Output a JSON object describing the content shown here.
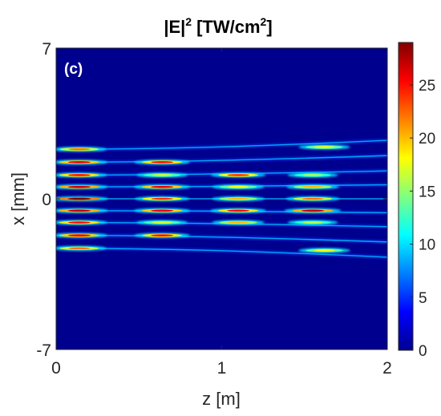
{
  "chart_data": {
    "type": "heatmap",
    "title": {
      "main": "|E|",
      "sup1": "2",
      "unit": "[TW/cm",
      "sup2": "2",
      "close": "]"
    },
    "panel_label": "(c)",
    "xlabel": "z [m]",
    "ylabel": "x [mm]",
    "xlim": [
      0,
      2
    ],
    "ylim": [
      -7,
      7
    ],
    "xticks": [
      "0",
      "1",
      "2"
    ],
    "yticks": [
      "-7",
      "0",
      "7"
    ],
    "colorbar": {
      "range": [
        0,
        29
      ],
      "ticks": [
        "0",
        "5",
        "10",
        "15",
        "20",
        "25"
      ],
      "colormap": "jet"
    },
    "background_color": "#00008f",
    "filaments": {
      "x_mm": [
        2.3,
        1.7,
        1.1,
        0.55,
        0,
        -0.55,
        -1.1,
        -1.7,
        -2.3
      ],
      "hotspots": [
        {
          "z": 0.14,
          "x": 2.3,
          "peak": 22
        },
        {
          "z": 0.14,
          "x": 1.7,
          "peak": 26
        },
        {
          "z": 0.14,
          "x": 1.1,
          "peak": 25
        },
        {
          "z": 0.14,
          "x": 0.55,
          "peak": 27
        },
        {
          "z": 0.14,
          "x": 0,
          "peak": 29
        },
        {
          "z": 0.14,
          "x": -0.55,
          "peak": 27
        },
        {
          "z": 0.14,
          "x": -1.1,
          "peak": 25
        },
        {
          "z": 0.14,
          "x": -1.7,
          "peak": 26
        },
        {
          "z": 0.14,
          "x": -2.3,
          "peak": 22
        },
        {
          "z": 0.64,
          "x": 1.7,
          "peak": 25
        },
        {
          "z": 0.64,
          "x": 1.1,
          "peak": 17
        },
        {
          "z": 0.64,
          "x": 0.55,
          "peak": 26
        },
        {
          "z": 0.64,
          "x": 0,
          "peak": 24
        },
        {
          "z": 0.64,
          "x": -0.55,
          "peak": 26
        },
        {
          "z": 0.64,
          "x": -1.1,
          "peak": 17
        },
        {
          "z": 0.64,
          "x": -1.7,
          "peak": 25
        },
        {
          "z": 1.1,
          "x": 1.1,
          "peak": 24
        },
        {
          "z": 1.1,
          "x": 0.55,
          "peak": 18
        },
        {
          "z": 1.1,
          "x": 0,
          "peak": 20
        },
        {
          "z": 1.1,
          "x": -0.55,
          "peak": 25
        },
        {
          "z": 1.1,
          "x": -1.1,
          "peak": 20
        },
        {
          "z": 1.55,
          "x": 1.1,
          "peak": 16
        },
        {
          "z": 1.55,
          "x": 0.55,
          "peak": 20
        },
        {
          "z": 1.55,
          "x": 0,
          "peak": 22
        },
        {
          "z": 1.55,
          "x": -0.55,
          "peak": 27
        },
        {
          "z": 1.55,
          "x": -1.1,
          "peak": 16
        },
        {
          "z": 1.62,
          "x": 2.4,
          "peak": 18
        },
        {
          "z": 1.62,
          "x": -2.4,
          "peak": 18
        }
      ]
    }
  }
}
